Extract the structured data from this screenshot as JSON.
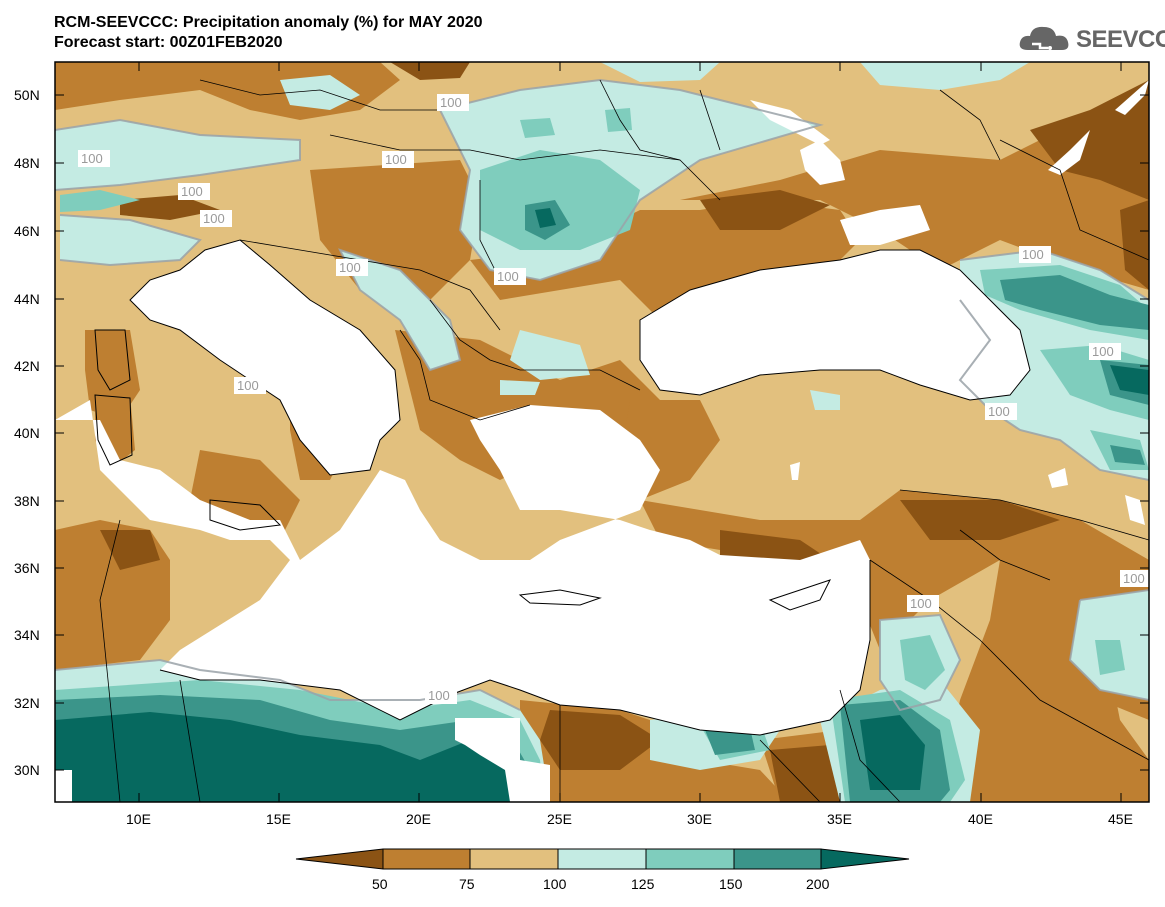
{
  "title": {
    "line1": "RCM-SEEVCCC: Precipitation anomaly (%) for MAY 2020",
    "line2": "Forecast start: 00Z01FEB2020"
  },
  "logo": {
    "text": "SEEVCCC",
    "icon": "cloud-icon"
  },
  "map": {
    "lon_range": [
      7,
      46
    ],
    "lat_range": [
      29,
      51
    ],
    "lat_ticks": [
      "50N",
      "48N",
      "46N",
      "44N",
      "42N",
      "40N",
      "38N",
      "36N",
      "34N",
      "32N",
      "30N"
    ],
    "lon_ticks": [
      "10E",
      "15E",
      "20E",
      "25E",
      "30E",
      "35E",
      "40E",
      "45E"
    ],
    "contour_labels": [
      "100",
      "100",
      "100",
      "100",
      "100",
      "100",
      "100",
      "100",
      "100",
      "100",
      "100",
      "100",
      "100",
      "100"
    ]
  },
  "colorbar": {
    "levels": [
      "50",
      "75",
      "100",
      "125",
      "150",
      "200"
    ],
    "colors": [
      "#8b5314",
      "#be7f31",
      "#e2c07e",
      "#c4ebe3",
      "#7fcdbd",
      "#3b958a",
      "#06695f"
    ]
  }
}
